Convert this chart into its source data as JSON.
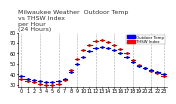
{
  "title": "Milwaukee Weather  Outdoor Temp\nvs THSW Index\nper Hour\n(24 Hours)",
  "legend_temp_label": "Outdoor Temp",
  "legend_thsw_label": "THSW Index",
  "legend_temp_color": "#0000ff",
  "legend_thsw_color": "#ff0000",
  "temp_color": "#0000cc",
  "thsw_color": "#cc0000",
  "hours": [
    0,
    1,
    2,
    3,
    4,
    5,
    6,
    7,
    8,
    9,
    10,
    11,
    12,
    13,
    14,
    15,
    16,
    17,
    18,
    19,
    20,
    21,
    22,
    23
  ],
  "temp_values": [
    38,
    36,
    35,
    34,
    33,
    33,
    34,
    36,
    42,
    50,
    57,
    62,
    65,
    66,
    65,
    63,
    60,
    57,
    52,
    48,
    46,
    44,
    42,
    40
  ],
  "thsw_values": [
    36,
    34,
    33,
    31,
    30,
    30,
    31,
    35,
    44,
    55,
    63,
    68,
    72,
    73,
    71,
    68,
    64,
    60,
    54,
    49,
    46,
    43,
    41,
    38
  ],
  "ylim": [
    28,
    80
  ],
  "yticks": [
    30,
    40,
    50,
    60,
    70,
    80
  ],
  "ytick_labels": [
    "30",
    "40",
    "50",
    "60",
    "70",
    "80"
  ],
  "background_color": "#ffffff",
  "grid_color": "#aaaaaa",
  "title_fontsize": 4.5,
  "tick_fontsize": 3.5
}
